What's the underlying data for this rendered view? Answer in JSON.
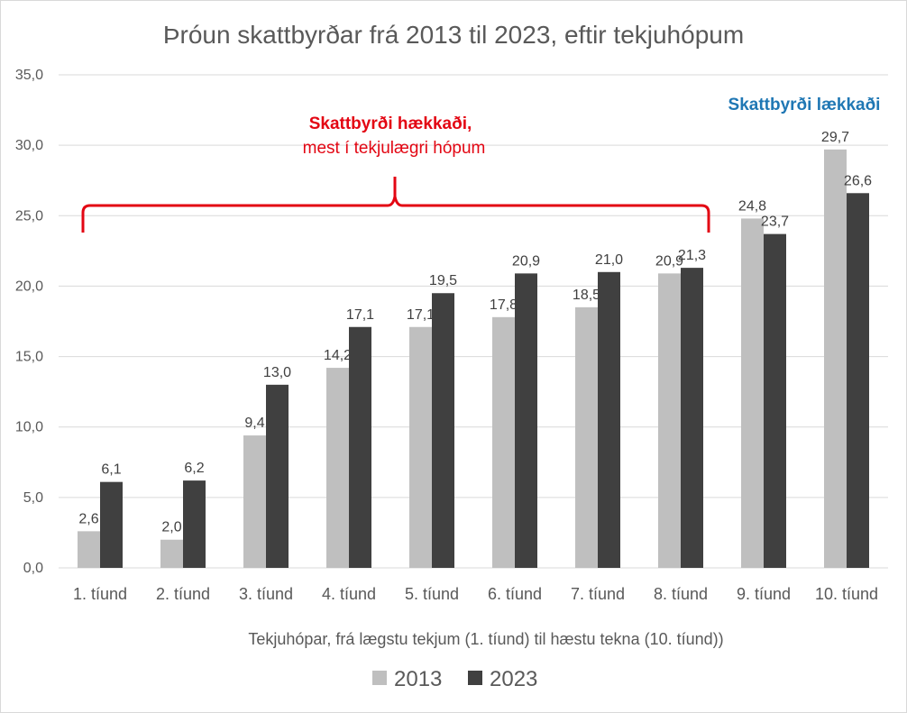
{
  "chart_data": {
    "type": "bar",
    "title": "Þróun skattbyrðar frá 2013 til 2023, eftir tekjuhópum",
    "xlabel": "Tekjuhópar, frá lægstu tekjum (1. tíund) til hæstu tekna (10. tíund))",
    "ylabel": "",
    "ylim": [
      0,
      35
    ],
    "y_ticks": [
      "0,0",
      "5,0",
      "10,0",
      "15,0",
      "20,0",
      "25,0",
      "30,0",
      "35,0"
    ],
    "categories": [
      "1. tíund",
      "2. tíund",
      "3. tíund",
      "4. tíund",
      "5. tíund",
      "6. tíund",
      "7. tíund",
      "8. tíund",
      "9. tíund",
      "10. tíund"
    ],
    "series": [
      {
        "name": "2013",
        "color": "#bfbfbf",
        "values": [
          2.6,
          2.0,
          9.4,
          14.2,
          17.1,
          17.8,
          18.5,
          20.9,
          24.8,
          29.7
        ],
        "labels": [
          "2,6",
          "2,0",
          "9,4",
          "14,2",
          "17,1",
          "17,8",
          "18,5",
          "20,9",
          "24,8",
          "29,7"
        ]
      },
      {
        "name": "2023",
        "color": "#404040",
        "values": [
          6.1,
          6.2,
          13.0,
          17.1,
          19.5,
          20.9,
          21.0,
          21.3,
          23.7,
          26.6
        ],
        "labels": [
          "6,1",
          "6,2",
          "13,0",
          "17,1",
          "19,5",
          "20,9",
          "21,0",
          "21,3",
          "23,7",
          "26,6"
        ]
      }
    ],
    "grid": true,
    "legend": "bottom",
    "annotations": {
      "increase_line1": "Skattbyrði hækkaði,",
      "increase_line2": "mest í tekjulægri hópum",
      "decrease": "Skattbyrði lækkaði",
      "increase_color": "#e30613",
      "decrease_color": "#1f77b4"
    }
  }
}
